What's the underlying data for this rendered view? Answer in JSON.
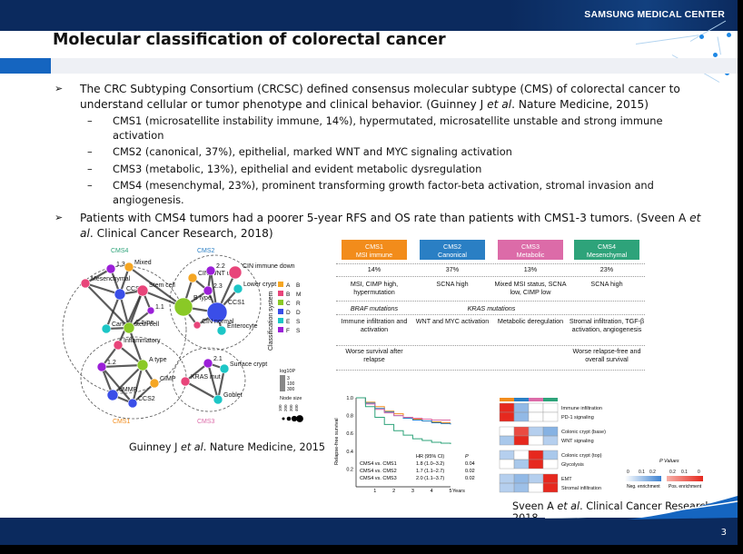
{
  "brand": "SAMSUNG MEDICAL CENTER",
  "title": "Molecular classification of colorectal cancer",
  "page_number": "3",
  "bullets": [
    {
      "text_parts": [
        "The CRC Subtyping Consortium (CRCSC) defined consensus molecular subtype (CMS) of colorectal cancer to understand cellular or tumor phenotype and clinical behavior. (Guinney J ",
        "et al",
        ". Nature Medicine, 2015)"
      ]
    },
    {
      "text_parts": [
        "Patients with CMS4 tumors had a poorer 5-year RFS and OS rate than patients with CMS1-3 tumors. (Sveen A ",
        "et al",
        ". Clinical Cancer Research, 2018)"
      ]
    }
  ],
  "subbullets": [
    "CMS1 (microsatellite instability immune, 14%), hypermutated, microsatellite unstable and strong immune activation",
    "CMS2 (canonical, 37%), epithelial, marked WNT and MYC signaling activation",
    "CMS3 (metabolic, 13%), epithelial and evident metabolic dysregulation",
    "CMS4 (mesenchymal, 23%), prominent transforming growth factor-beta activation, stromal invasion and angiogenesis."
  ],
  "caption_left": [
    "Guinney J ",
    "et al",
    ". Nature Medicine, 2015"
  ],
  "caption_right": [
    "Sveen A ",
    "et al",
    ". Clinical Cancer Research, 2018"
  ],
  "network": {
    "group_labels": {
      "cms4": "CMS4",
      "cms2": "CMS2",
      "cms1": "CMS1",
      "cms3": "CMS3"
    },
    "nodes": [
      {
        "id": "1.3",
        "label": "1.3"
      },
      {
        "id": "Mixed",
        "label": "Mixed"
      },
      {
        "id": "Mesenchymal",
        "label": "Mesenchymal"
      },
      {
        "id": "CCS3",
        "label": "CCS3"
      },
      {
        "id": "Stem cell",
        "label": "Stem cell"
      },
      {
        "id": "1.1",
        "label": "1.1"
      },
      {
        "id": "Cancer stem cell",
        "label": "Cancer stem cell"
      },
      {
        "id": "C type",
        "label": "C type"
      },
      {
        "id": "CIN WNT up",
        "label": "CIN WNT up"
      },
      {
        "id": "2.2",
        "label": "2.2"
      },
      {
        "id": "CIN immune down",
        "label": "CIN immune down"
      },
      {
        "id": "Lower crypt",
        "label": "Lower crypt"
      },
      {
        "id": "B type",
        "label": "B type"
      },
      {
        "id": "2.3",
        "label": "2.3"
      },
      {
        "id": "CCS1",
        "label": "CCS1"
      },
      {
        "id": "CIN normal",
        "label": "CIN normal"
      },
      {
        "id": "Enterocyte",
        "label": "Enterocyte"
      },
      {
        "id": "Inflammatory",
        "label": "Inflammatory"
      },
      {
        "id": "A type",
        "label": "A type"
      },
      {
        "id": "1.2",
        "label": "1.2"
      },
      {
        "id": "CIMP",
        "label": "CIMP"
      },
      {
        "id": "dMMR",
        "label": "dMMR"
      },
      {
        "id": "CCS2",
        "label": "CCS2"
      },
      {
        "id": "KRAS mut",
        "label": "KRAS mut"
      },
      {
        "id": "2.1",
        "label": "2.1"
      },
      {
        "id": "Surface crypt",
        "label": "Surface crypt"
      },
      {
        "id": "Goblet",
        "label": "Goblet"
      }
    ],
    "legend_title": "Classification system",
    "legend": [
      {
        "letter": "A",
        "text": "B",
        "color": "#f5a623"
      },
      {
        "letter": "B",
        "text": "M",
        "color": "#e8457a"
      },
      {
        "letter": "C",
        "text": "R",
        "color": "#8ac926"
      },
      {
        "letter": "D",
        "text": "D",
        "color": "#3a4ee8"
      },
      {
        "letter": "E",
        "text": "S",
        "color": "#1cc6c6"
      },
      {
        "letter": "F",
        "text": "S",
        "color": "#9b1fd8"
      }
    ],
    "log_label": "log10P",
    "log_ticks": [
      "3",
      "100",
      "300"
    ],
    "node_size_label": "Node size",
    "node_size_ticks": [
      "100",
      "200",
      "300",
      "400"
    ]
  },
  "table": {
    "headers": [
      {
        "line1": "CMS1",
        "line2": "MSI immune",
        "color": "#f28c1b"
      },
      {
        "line1": "CMS2",
        "line2": "Canonical",
        "color": "#2a7fc4"
      },
      {
        "line1": "CMS3",
        "line2": "Metabolic",
        "color": "#dc6ba8"
      },
      {
        "line1": "CMS4",
        "line2": "Mesenchymal",
        "color": "#2ea37a"
      }
    ],
    "percent": [
      "14%",
      "37%",
      "13%",
      "23%"
    ],
    "row2": [
      "MSI, CIMP high, hypermutation",
      "SCNA high",
      "Mixed MSI status, SCNA low, CIMP low",
      "SCNA high"
    ],
    "row3_left": "BRAF mutations",
    "row3_mid": "KRAS mutations",
    "row4": [
      "Immune infiltration and activation",
      "WNT and MYC activation",
      "Metabolic deregulation",
      "Stromal infiltration, TGF-β activation, angiogenesis"
    ],
    "row5_left": "Worse survival after relapse",
    "row5_right": "Worse relapse-free and overall survival"
  },
  "km": {
    "ylabel": "Relapse-free survival",
    "xlabel_unit": "Years",
    "yticks": [
      "1.0",
      "0.8",
      "0.6",
      "0.4",
      "0.2"
    ],
    "xticks": [
      "1",
      "2",
      "3",
      "4",
      "5"
    ],
    "stats_header": [
      "HR (95% CI)",
      "P"
    ],
    "stats": [
      {
        "label": "CMS4 vs. CMS1",
        "hr": "1.8 (1.0–3.2)",
        "p": "0.04"
      },
      {
        "label": "CMS4 vs. CMS2",
        "hr": "1.7 (1.1–2.7)",
        "p": "0.02"
      },
      {
        "label": "CMS4 vs. CMS3",
        "hr": "2.0 (1.1–3.7)",
        "p": "0.02"
      }
    ]
  },
  "heatmap": {
    "rows": [
      "Immune infiltration",
      "PD-1 signaling",
      "Colonic crypt (base)",
      "WNT signaling",
      "Colonic crypt (top)",
      "Glycolysis",
      "EMT",
      "Stromal infiltration"
    ],
    "pvalues_label": "P Values",
    "scale_ticks": [
      "0",
      "0.1",
      "0.2",
      "0.2",
      "0.1",
      "0"
    ],
    "neg_label": "Neg. enrichment",
    "pos_label": "Pos. enrichment"
  },
  "chart_data": [
    {
      "type": "line",
      "title": "",
      "xlabel": "Years",
      "ylabel": "Relapse-free survival",
      "ylim": [
        0.0,
        1.0
      ],
      "xlim": [
        0,
        5
      ],
      "series": [
        {
          "color": "#f28c1b",
          "x": [
            0,
            0.5,
            1,
            1.5,
            2,
            2.5,
            3,
            3.5,
            4,
            4.5,
            5
          ],
          "values": [
            1.0,
            0.95,
            0.9,
            0.85,
            0.82,
            0.78,
            0.76,
            0.74,
            0.73,
            0.72,
            0.72
          ]
        },
        {
          "color": "#2a7fc4",
          "x": [
            0,
            0.5,
            1,
            1.5,
            2,
            2.5,
            3,
            3.5,
            4,
            4.5,
            5
          ],
          "values": [
            1.0,
            0.94,
            0.88,
            0.84,
            0.8,
            0.77,
            0.75,
            0.74,
            0.72,
            0.71,
            0.7
          ]
        },
        {
          "color": "#dc6ba8",
          "x": [
            0,
            0.5,
            1,
            1.5,
            2,
            2.5,
            3,
            3.5,
            4,
            4.5,
            5
          ],
          "values": [
            1.0,
            0.93,
            0.87,
            0.83,
            0.8,
            0.78,
            0.77,
            0.76,
            0.75,
            0.75,
            0.75
          ]
        },
        {
          "color": "#2ea37a",
          "x": [
            0,
            0.5,
            1,
            1.5,
            2,
            2.5,
            3,
            3.5,
            4,
            4.5,
            5
          ],
          "values": [
            1.0,
            0.9,
            0.78,
            0.7,
            0.63,
            0.58,
            0.54,
            0.52,
            0.5,
            0.49,
            0.48
          ]
        }
      ]
    },
    {
      "type": "heatmap",
      "title": "",
      "rows": [
        "Immune infiltration",
        "PD-1 signaling",
        "Colonic crypt (base)",
        "WNT signaling",
        "Colonic crypt (top)",
        "Glycolysis",
        "EMT",
        "Stromal infiltration"
      ],
      "columns": [
        "CMS1",
        "CMS2",
        "CMS3",
        "CMS4"
      ],
      "values": [
        [
          1,
          -0.6,
          0,
          0
        ],
        [
          1,
          -0.6,
          0,
          0
        ],
        [
          0,
          0.8,
          -0.3,
          -0.7
        ],
        [
          -0.4,
          1,
          0,
          -0.3
        ],
        [
          -0.3,
          0,
          1,
          -0.4
        ],
        [
          0,
          -0.4,
          1,
          0
        ],
        [
          -0.3,
          -0.6,
          -0.3,
          1
        ],
        [
          -0.3,
          -0.5,
          0,
          1
        ]
      ]
    }
  ]
}
